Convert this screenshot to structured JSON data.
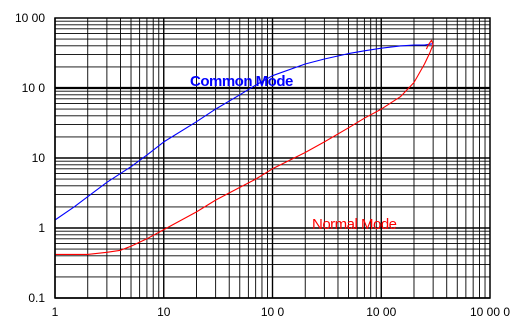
{
  "chart_data": {
    "type": "line",
    "title": "",
    "xlabel": "",
    "ylabel": "",
    "x_scale": "log",
    "y_scale": "log",
    "xlim": [
      1,
      10000
    ],
    "ylim": [
      0.1,
      1000
    ],
    "grid": true,
    "x_ticks": [
      {
        "value": 1,
        "label": "1"
      },
      {
        "value": 10,
        "label": "10"
      },
      {
        "value": 100,
        "label": "10 0"
      },
      {
        "value": 1000,
        "label": "10 00"
      },
      {
        "value": 10000,
        "label": "10 00 0"
      }
    ],
    "y_ticks": [
      {
        "value": 0.1,
        "label": "0.1"
      },
      {
        "value": 1,
        "label": "1"
      },
      {
        "value": 10,
        "label": "10"
      },
      {
        "value": 100,
        "label": "10 0"
      },
      {
        "value": 1000,
        "label": "10 00"
      }
    ],
    "series": [
      {
        "name": "Common Mode",
        "color": "#0000ff",
        "points": [
          [
            1,
            1.3
          ],
          [
            1.5,
            2.0
          ],
          [
            2,
            2.8
          ],
          [
            3,
            4.5
          ],
          [
            5,
            7.5
          ],
          [
            7,
            11
          ],
          [
            10,
            17
          ],
          [
            20,
            33
          ],
          [
            30,
            50
          ],
          [
            50,
            80
          ],
          [
            70,
            110
          ],
          [
            100,
            150
          ],
          [
            200,
            220
          ],
          [
            300,
            260
          ],
          [
            500,
            310
          ],
          [
            700,
            340
          ],
          [
            1000,
            370
          ],
          [
            1500,
            400
          ],
          [
            2000,
            410
          ],
          [
            2500,
            410
          ],
          [
            3000,
            430
          ]
        ]
      },
      {
        "name": "Normal Mode",
        "color": "#ff0000",
        "points": [
          [
            1,
            0.42
          ],
          [
            2,
            0.42
          ],
          [
            3,
            0.45
          ],
          [
            4,
            0.48
          ],
          [
            5,
            0.55
          ],
          [
            7,
            0.7
          ],
          [
            10,
            0.95
          ],
          [
            20,
            1.7
          ],
          [
            30,
            2.5
          ],
          [
            50,
            3.8
          ],
          [
            70,
            5
          ],
          [
            100,
            7
          ],
          [
            200,
            12
          ],
          [
            300,
            17
          ],
          [
            500,
            27
          ],
          [
            700,
            37
          ],
          [
            1000,
            50
          ],
          [
            1500,
            75
          ],
          [
            2000,
            120
          ],
          [
            2500,
            220
          ],
          [
            2800,
            320
          ],
          [
            3000,
            420
          ],
          [
            2900,
            480
          ],
          [
            2700,
            410
          ],
          [
            2600,
            360
          ]
        ]
      }
    ],
    "annotations": [
      {
        "text": "Common Mode",
        "series": "Common Mode",
        "color": "#0000ff",
        "bold": true
      },
      {
        "text": "Normal Mode",
        "series": "Normal Mode",
        "color": "#ff0000",
        "bold": false
      }
    ]
  }
}
